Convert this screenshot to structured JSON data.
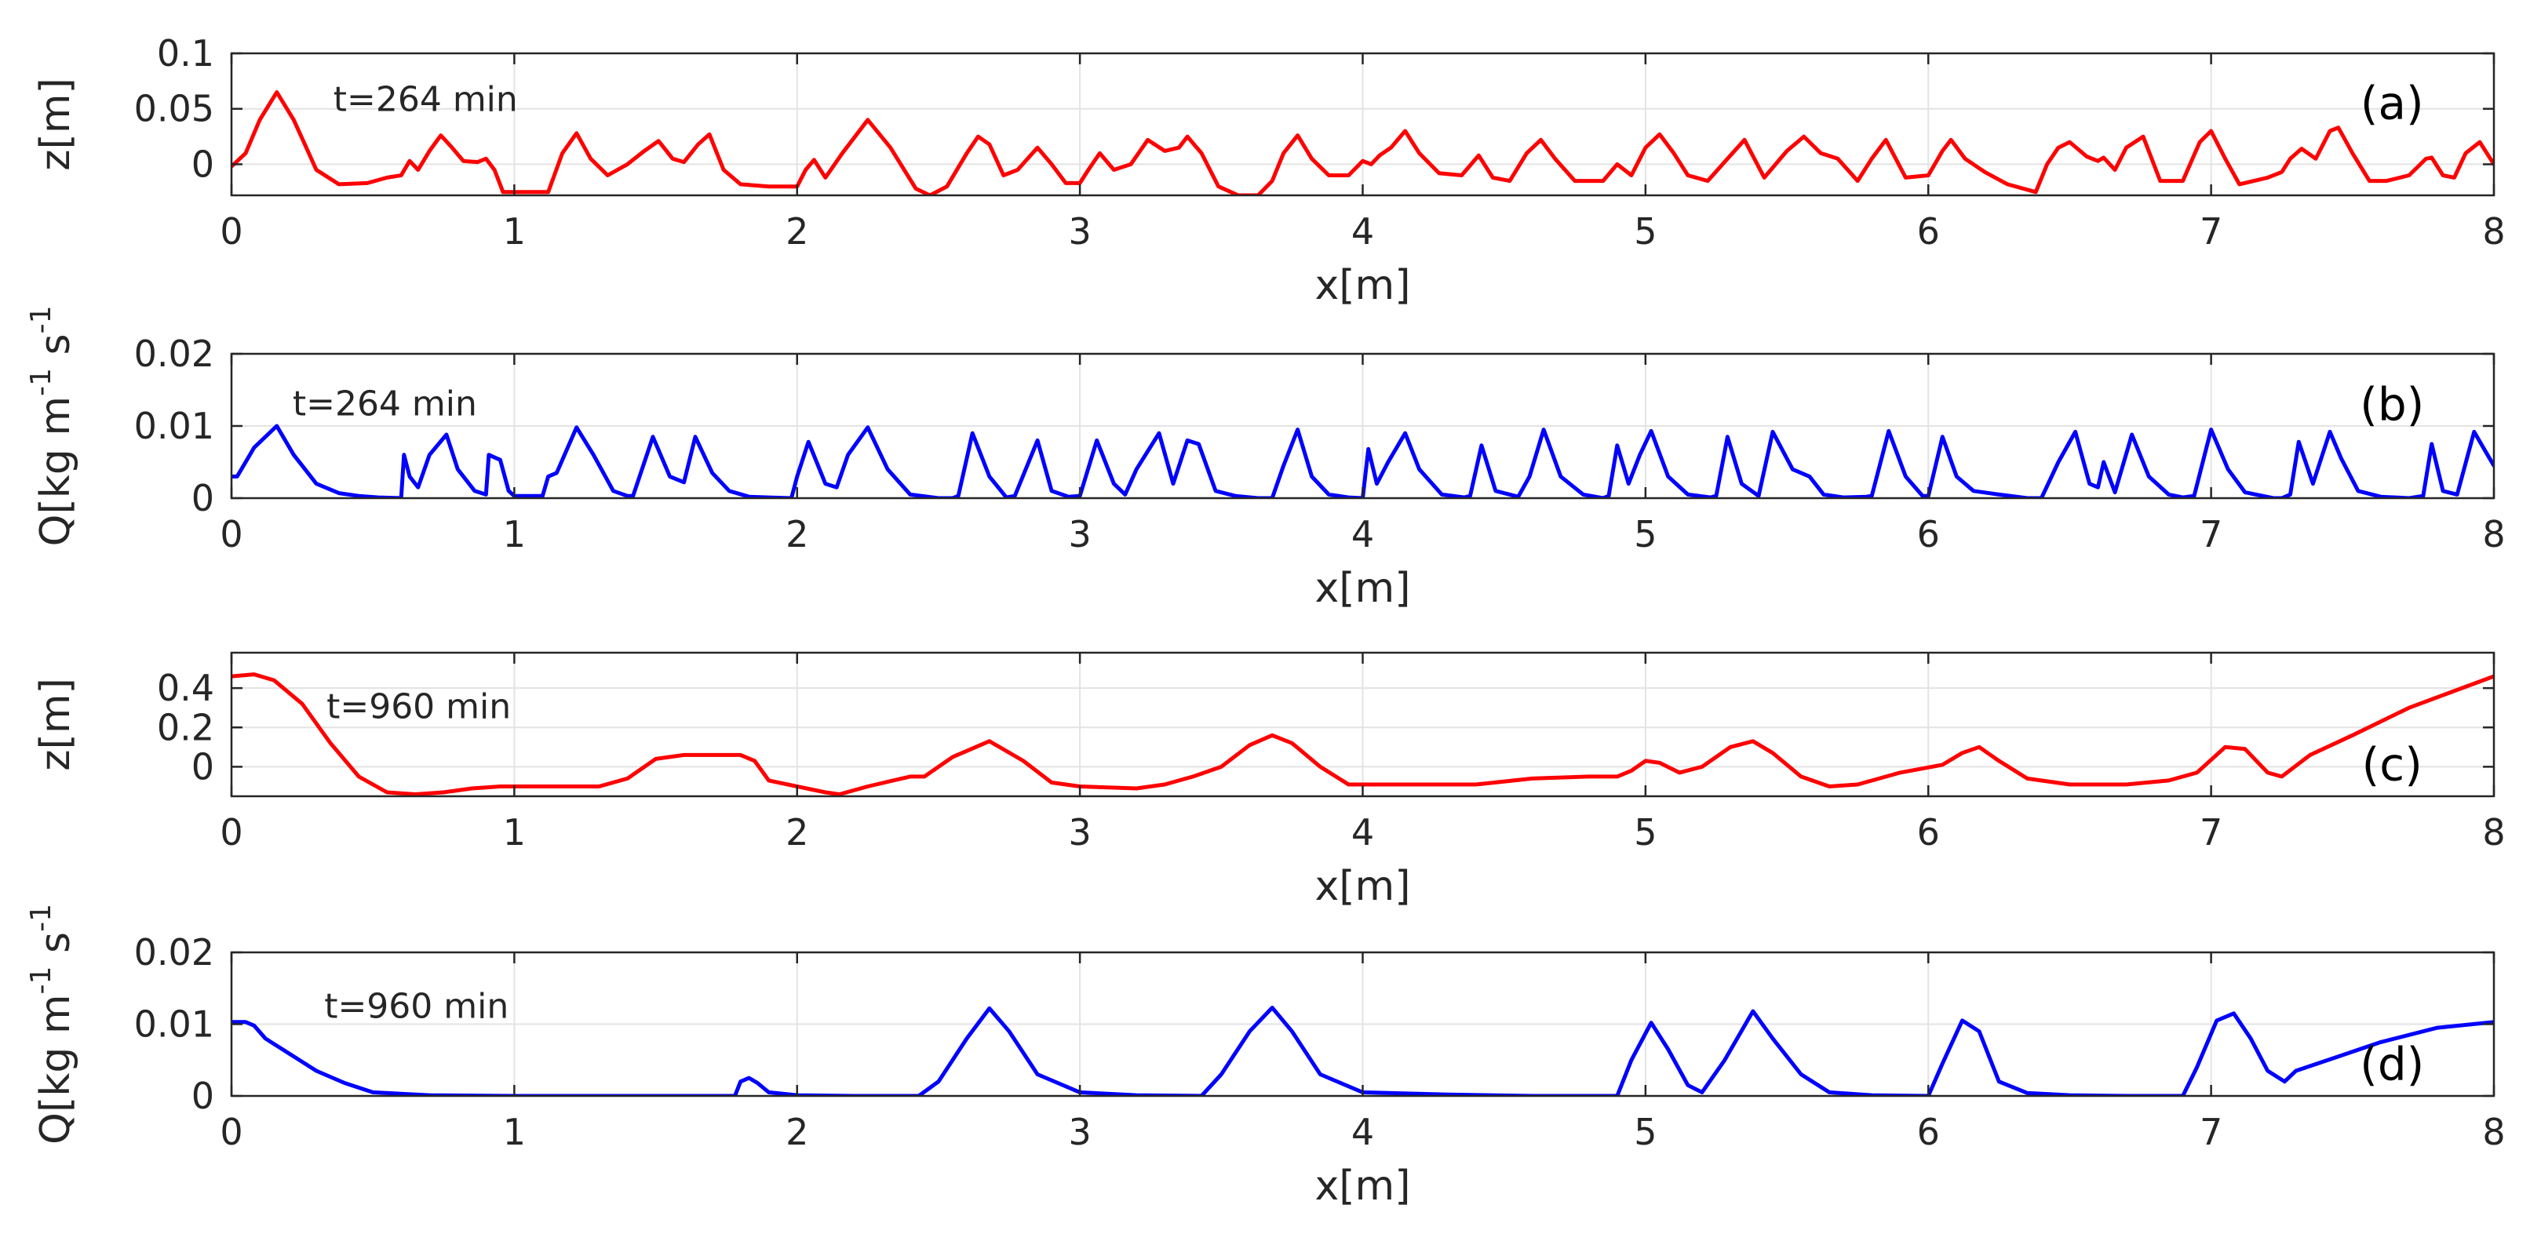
{
  "chart_data": [
    {
      "type": "line",
      "panel_tag": "(a)",
      "annotation": "t=264 min",
      "xlabel": "x[m]",
      "ylabel": "z[m]",
      "ylabel_super": [],
      "xlim": [
        0,
        8
      ],
      "ylim": [
        -0.028,
        0.1
      ],
      "x_ticks": [
        0,
        1,
        2,
        3,
        4,
        5,
        6,
        7,
        8
      ],
      "y_ticks": [
        0,
        0.05,
        0.1
      ],
      "y_tick_labels": [
        "0",
        "0.05",
        "0.1"
      ],
      "grid": true,
      "color": "#ff0000",
      "series": [
        {
          "x": [
            0.0,
            0.05,
            0.1,
            0.16,
            0.22,
            0.3,
            0.38,
            0.48,
            0.55,
            0.6,
            0.63,
            0.66,
            0.7,
            0.74,
            0.78,
            0.82,
            0.87,
            0.9,
            0.93,
            0.96,
            1.0,
            1.05,
            1.12,
            1.17,
            1.22,
            1.27,
            1.33,
            1.4,
            1.46,
            1.51,
            1.56,
            1.6,
            1.65,
            1.69,
            1.74,
            1.8,
            1.9,
            2.0,
            2.03,
            2.06,
            2.1,
            2.16,
            2.25,
            2.33,
            2.42,
            2.47,
            2.53,
            2.6,
            2.64,
            2.68,
            2.73,
            2.78,
            2.85,
            2.9,
            2.95,
            3.0,
            3.03,
            3.07,
            3.12,
            3.18,
            3.24,
            3.3,
            3.35,
            3.38,
            3.43,
            3.49,
            3.56,
            3.63,
            3.68,
            3.72,
            3.77,
            3.82,
            3.88,
            3.95,
            4.0,
            4.03,
            4.06,
            4.1,
            4.15,
            4.2,
            4.27,
            4.35,
            4.41,
            4.46,
            4.52,
            4.58,
            4.63,
            4.68,
            4.75,
            4.85,
            4.9,
            4.95,
            5.0,
            5.05,
            5.1,
            5.15,
            5.22,
            5.29,
            5.35,
            5.42,
            5.5,
            5.56,
            5.62,
            5.68,
            5.75,
            5.8,
            5.85,
            5.92,
            6.0,
            6.05,
            6.08,
            6.13,
            6.2,
            6.28,
            6.38,
            6.42,
            6.46,
            6.5,
            6.56,
            6.6,
            6.62,
            6.66,
            6.7,
            6.76,
            6.82,
            6.9,
            6.96,
            7.0,
            7.05,
            7.1,
            7.2,
            7.25,
            7.28,
            7.32,
            7.37,
            7.42,
            7.45,
            7.5,
            7.56,
            7.62,
            7.7,
            7.76,
            7.78,
            7.82,
            7.86,
            7.9,
            7.95,
            8.0
          ],
          "y": [
            -0.002,
            0.01,
            0.04,
            0.065,
            0.04,
            -0.005,
            -0.018,
            -0.017,
            -0.012,
            -0.01,
            0.003,
            -0.005,
            0.012,
            0.026,
            0.015,
            0.003,
            0.002,
            0.005,
            -0.005,
            -0.025,
            -0.025,
            -0.025,
            -0.025,
            0.01,
            0.028,
            0.005,
            -0.01,
            0.0,
            0.012,
            0.021,
            0.005,
            0.002,
            0.018,
            0.027,
            -0.005,
            -0.018,
            -0.02,
            -0.02,
            -0.005,
            0.004,
            -0.012,
            0.01,
            0.04,
            0.015,
            -0.022,
            -0.028,
            -0.02,
            0.01,
            0.025,
            0.018,
            -0.01,
            -0.005,
            0.015,
            0.0,
            -0.017,
            -0.017,
            -0.005,
            0.01,
            -0.005,
            0.0,
            0.022,
            0.012,
            0.015,
            0.025,
            0.01,
            -0.02,
            -0.028,
            -0.028,
            -0.015,
            0.01,
            0.026,
            0.005,
            -0.01,
            -0.01,
            0.003,
            0.0,
            0.008,
            0.015,
            0.03,
            0.01,
            -0.008,
            -0.01,
            0.008,
            -0.012,
            -0.015,
            0.01,
            0.022,
            0.005,
            -0.015,
            -0.015,
            0.0,
            -0.01,
            0.015,
            0.027,
            0.01,
            -0.01,
            -0.015,
            0.005,
            0.022,
            -0.012,
            0.012,
            0.025,
            0.01,
            0.005,
            -0.015,
            0.005,
            0.022,
            -0.012,
            -0.01,
            0.012,
            0.022,
            0.005,
            -0.007,
            -0.018,
            -0.025,
            0.0,
            0.015,
            0.02,
            0.007,
            0.003,
            0.006,
            -0.005,
            0.015,
            0.025,
            -0.015,
            -0.015,
            0.02,
            0.03,
            0.005,
            -0.018,
            -0.012,
            -0.007,
            0.005,
            0.014,
            0.005,
            0.03,
            0.033,
            0.01,
            -0.015,
            -0.015,
            -0.01,
            0.005,
            0.006,
            -0.01,
            -0.012,
            0.01,
            0.02,
            0.0
          ]
        }
      ]
    },
    {
      "type": "line",
      "panel_tag": "(b)",
      "annotation": "t=264 min",
      "xlabel": "x[m]",
      "ylabel": "Q[kg m",
      "ylabel_super": [
        "-1",
        "-1"
      ],
      "ylabel_mid": " s",
      "xlim": [
        0,
        8
      ],
      "ylim": [
        0,
        0.02
      ],
      "x_ticks": [
        0,
        1,
        2,
        3,
        4,
        5,
        6,
        7,
        8
      ],
      "y_ticks": [
        0,
        0.01,
        0.02
      ],
      "y_tick_labels": [
        "0",
        "0.01",
        "0.02"
      ],
      "grid": true,
      "color": "#0000ff",
      "series": [
        {
          "x": [
            0.0,
            0.02,
            0.08,
            0.16,
            0.22,
            0.3,
            0.38,
            0.45,
            0.52,
            0.6,
            0.61,
            0.63,
            0.66,
            0.7,
            0.76,
            0.8,
            0.86,
            0.9,
            0.91,
            0.95,
            0.98,
            1.0,
            1.1,
            1.12,
            1.15,
            1.22,
            1.28,
            1.35,
            1.4,
            1.42,
            1.49,
            1.55,
            1.6,
            1.64,
            1.7,
            1.76,
            1.83,
            1.9,
            1.98,
            2.0,
            2.04,
            2.1,
            2.14,
            2.18,
            2.25,
            2.32,
            2.4,
            2.5,
            2.55,
            2.57,
            2.62,
            2.68,
            2.74,
            2.77,
            2.85,
            2.9,
            2.96,
            3.0,
            3.06,
            3.12,
            3.16,
            3.2,
            3.28,
            3.33,
            3.38,
            3.42,
            3.48,
            3.55,
            3.63,
            3.68,
            3.72,
            3.77,
            3.82,
            3.88,
            3.95,
            4.0,
            4.02,
            4.05,
            4.09,
            4.15,
            4.2,
            4.28,
            4.36,
            4.38,
            4.42,
            4.47,
            4.55,
            4.59,
            4.64,
            4.7,
            4.78,
            4.85,
            4.87,
            4.9,
            4.94,
            4.98,
            5.02,
            5.08,
            5.15,
            5.23,
            5.25,
            5.29,
            5.34,
            5.4,
            5.45,
            5.52,
            5.58,
            5.63,
            5.7,
            5.78,
            5.8,
            5.86,
            5.92,
            5.98,
            6.0,
            6.05,
            6.1,
            6.16,
            6.25,
            6.35,
            6.4,
            6.46,
            6.52,
            6.57,
            6.6,
            6.62,
            6.66,
            6.72,
            6.78,
            6.85,
            6.9,
            6.94,
            7.0,
            7.06,
            7.12,
            7.22,
            7.25,
            7.28,
            7.31,
            7.36,
            7.42,
            7.46,
            7.52,
            7.6,
            7.7,
            7.75,
            7.78,
            7.82,
            7.87,
            7.93,
            7.97,
            8.0
          ],
          "y": [
            0.003,
            0.003,
            0.007,
            0.01,
            0.006,
            0.002,
            0.0007,
            0.0003,
            0.0001,
            0.0,
            0.006,
            0.003,
            0.0015,
            0.006,
            0.0088,
            0.004,
            0.001,
            0.0005,
            0.006,
            0.0053,
            0.001,
            0.0003,
            0.0003,
            0.003,
            0.0035,
            0.0098,
            0.006,
            0.001,
            0.0003,
            0.0003,
            0.0085,
            0.003,
            0.0022,
            0.0085,
            0.0035,
            0.001,
            0.0002,
            0.0001,
            0.0,
            0.003,
            0.0078,
            0.002,
            0.0015,
            0.006,
            0.0098,
            0.004,
            0.0005,
            0.0,
            0.0,
            0.0003,
            0.009,
            0.003,
            0.0001,
            0.0003,
            0.008,
            0.001,
            0.0002,
            0.0003,
            0.008,
            0.002,
            0.0005,
            0.004,
            0.009,
            0.002,
            0.008,
            0.0075,
            0.001,
            0.0003,
            0.0,
            0.0,
            0.0045,
            0.0095,
            0.003,
            0.0005,
            0.0001,
            0.0,
            0.0068,
            0.002,
            0.005,
            0.009,
            0.004,
            0.0005,
            0.0001,
            0.0003,
            0.0073,
            0.001,
            0.0002,
            0.003,
            0.0095,
            0.003,
            0.0005,
            0.0,
            0.0003,
            0.0073,
            0.002,
            0.006,
            0.0093,
            0.003,
            0.0005,
            0.0001,
            0.0003,
            0.0085,
            0.002,
            0.0003,
            0.0092,
            0.004,
            0.003,
            0.0005,
            0.0001,
            0.0002,
            0.0003,
            0.0093,
            0.003,
            0.0003,
            0.0003,
            0.0085,
            0.003,
            0.001,
            0.0005,
            0.0,
            0.0,
            0.005,
            0.0092,
            0.002,
            0.0015,
            0.005,
            0.0008,
            0.0088,
            0.003,
            0.0005,
            0.0001,
            0.0003,
            0.0095,
            0.004,
            0.0008,
            0.0,
            0.0,
            0.0005,
            0.0078,
            0.002,
            0.0092,
            0.0055,
            0.001,
            0.0002,
            0.0,
            0.0003,
            0.0075,
            0.001,
            0.0005,
            0.0092,
            0.0065,
            0.0045
          ]
        }
      ]
    },
    {
      "type": "line",
      "panel_tag": "(c)",
      "annotation": "t=960 min",
      "xlabel": "x[m]",
      "ylabel": "z[m]",
      "ylabel_super": [],
      "xlim": [
        0,
        8
      ],
      "ylim": [
        -0.15,
        0.58
      ],
      "x_ticks": [
        0,
        1,
        2,
        3,
        4,
        5,
        6,
        7,
        8
      ],
      "y_ticks": [
        0,
        0.2,
        0.4
      ],
      "y_tick_labels": [
        "0",
        "0.2",
        "0.4"
      ],
      "grid": true,
      "color": "#ff0000",
      "series": [
        {
          "x": [
            0.0,
            0.08,
            0.15,
            0.25,
            0.35,
            0.45,
            0.55,
            0.65,
            0.75,
            0.85,
            0.95,
            1.1,
            1.3,
            1.4,
            1.5,
            1.6,
            1.7,
            1.8,
            1.85,
            1.9,
            2.0,
            2.1,
            2.15,
            2.25,
            2.4,
            2.45,
            2.55,
            2.68,
            2.8,
            2.9,
            3.0,
            3.2,
            3.3,
            3.4,
            3.5,
            3.6,
            3.68,
            3.75,
            3.85,
            3.95,
            4.1,
            4.4,
            4.6,
            4.8,
            4.9,
            4.95,
            5.0,
            5.05,
            5.12,
            5.2,
            5.3,
            5.38,
            5.45,
            5.55,
            5.65,
            5.75,
            5.9,
            6.05,
            6.12,
            6.18,
            6.25,
            6.35,
            6.5,
            6.7,
            6.85,
            6.95,
            7.05,
            7.12,
            7.2,
            7.25,
            7.35,
            7.5,
            7.7,
            7.85,
            8.0
          ],
          "y": [
            0.46,
            0.47,
            0.44,
            0.32,
            0.12,
            -0.05,
            -0.13,
            -0.14,
            -0.13,
            -0.11,
            -0.1,
            -0.1,
            -0.1,
            -0.06,
            0.04,
            0.06,
            0.06,
            0.06,
            0.03,
            -0.07,
            -0.1,
            -0.13,
            -0.14,
            -0.1,
            -0.05,
            -0.05,
            0.05,
            0.13,
            0.03,
            -0.08,
            -0.1,
            -0.11,
            -0.09,
            -0.05,
            0.0,
            0.11,
            0.16,
            0.12,
            0.0,
            -0.09,
            -0.09,
            -0.09,
            -0.06,
            -0.05,
            -0.05,
            -0.02,
            0.03,
            0.02,
            -0.03,
            0.0,
            0.1,
            0.13,
            0.07,
            -0.05,
            -0.1,
            -0.09,
            -0.03,
            0.01,
            0.07,
            0.1,
            0.03,
            -0.06,
            -0.09,
            -0.09,
            -0.07,
            -0.03,
            0.1,
            0.09,
            -0.03,
            -0.05,
            0.06,
            0.16,
            0.3,
            0.38,
            0.46
          ]
        }
      ]
    },
    {
      "type": "line",
      "panel_tag": "(d)",
      "annotation": "t=960 min",
      "xlabel": "x[m]",
      "ylabel": "Q[kg m",
      "ylabel_super": [
        "-1",
        "-1"
      ],
      "ylabel_mid": " s",
      "xlim": [
        0,
        8
      ],
      "ylim": [
        0,
        0.02
      ],
      "x_ticks": [
        0,
        1,
        2,
        3,
        4,
        5,
        6,
        7,
        8
      ],
      "y_ticks": [
        0,
        0.01,
        0.02
      ],
      "y_tick_labels": [
        "0",
        "0.01",
        "0.02"
      ],
      "grid": true,
      "color": "#0000ff",
      "series": [
        {
          "x": [
            0.0,
            0.05,
            0.08,
            0.12,
            0.2,
            0.3,
            0.4,
            0.5,
            0.7,
            1.0,
            1.5,
            1.78,
            1.8,
            1.83,
            1.86,
            1.9,
            2.0,
            2.2,
            2.43,
            2.5,
            2.6,
            2.68,
            2.75,
            2.85,
            3.0,
            3.2,
            3.43,
            3.5,
            3.6,
            3.68,
            3.75,
            3.85,
            4.0,
            4.3,
            4.6,
            4.9,
            4.95,
            5.02,
            5.08,
            5.15,
            5.2,
            5.28,
            5.38,
            5.45,
            5.55,
            5.65,
            5.8,
            6.0,
            6.05,
            6.12,
            6.18,
            6.25,
            6.35,
            6.5,
            6.7,
            6.9,
            6.95,
            7.02,
            7.08,
            7.14,
            7.2,
            7.26,
            7.3,
            7.45,
            7.6,
            7.8,
            8.0
          ],
          "y": [
            0.0103,
            0.0103,
            0.0098,
            0.008,
            0.006,
            0.0035,
            0.0018,
            0.0005,
            0.0001,
            0.0,
            0.0,
            0.0,
            0.002,
            0.0025,
            0.0018,
            0.0005,
            0.0001,
            0.0,
            0.0,
            0.002,
            0.008,
            0.0122,
            0.009,
            0.003,
            0.0005,
            0.0001,
            0.0,
            0.003,
            0.009,
            0.0123,
            0.009,
            0.003,
            0.0005,
            0.0002,
            0.0,
            0.0,
            0.005,
            0.0102,
            0.0065,
            0.0015,
            0.0005,
            0.005,
            0.0118,
            0.008,
            0.003,
            0.0005,
            0.0001,
            0.0,
            0.0045,
            0.0105,
            0.009,
            0.002,
            0.0004,
            0.0001,
            0.0,
            0.0,
            0.004,
            0.0105,
            0.0115,
            0.008,
            0.0035,
            0.002,
            0.0035,
            0.0055,
            0.0075,
            0.0095,
            0.0103
          ]
        }
      ]
    }
  ]
}
